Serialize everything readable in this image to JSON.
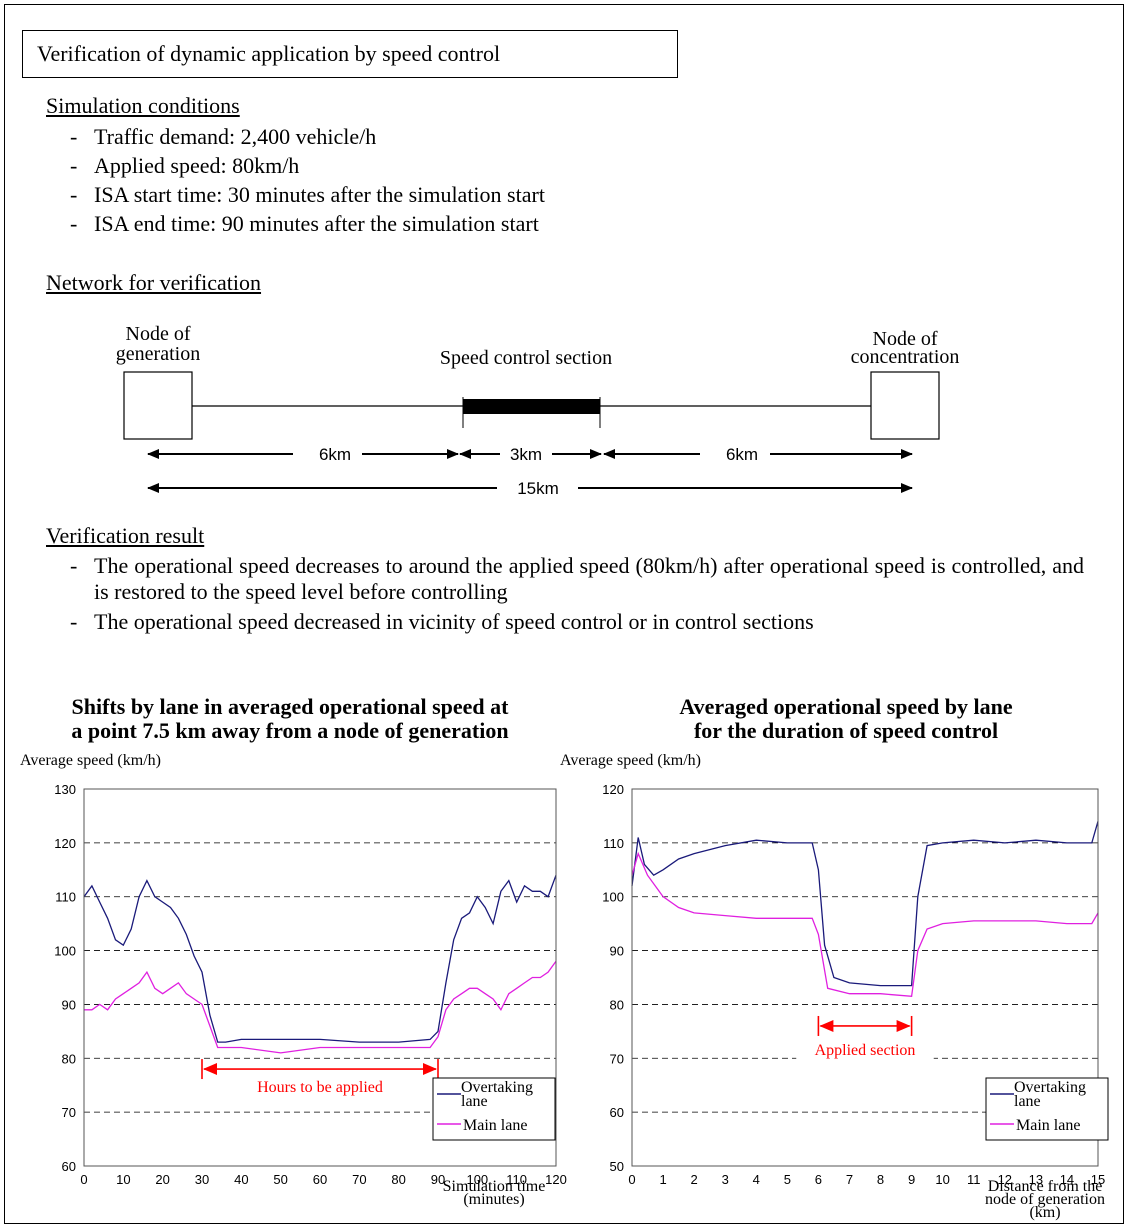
{
  "title": "Verification of dynamic application by speed control",
  "sim_conditions": {
    "heading": "Simulation conditions",
    "items": [
      "Traffic demand: 2,400 vehicle/h",
      "Applied speed: 80km/h",
      "ISA start time: 30 minutes after the simulation start",
      "ISA end time: 90 minutes after the simulation start"
    ]
  },
  "network": {
    "heading": "Network for verification",
    "node_gen": [
      "Node of",
      "generation"
    ],
    "node_con": [
      "Node of",
      "concentration"
    ],
    "section_label": "Speed control section",
    "seg1": "6km",
    "seg2": "3km",
    "seg3": "6km",
    "total": "15km"
  },
  "result": {
    "heading": "Verification result",
    "items": [
      "The operational speed decreases to around the applied speed (80km/h) after operational speed is controlled, and is restored to the speed level before controlling",
      "The operational speed decreased in vicinity of speed control or in control sections"
    ]
  },
  "colors": {
    "overtaking": "#1a1a7a",
    "main": "#e020e0",
    "annotation": "#ff0000"
  },
  "chart_data": [
    {
      "type": "line",
      "title": [
        "Shifts by lane in averaged operational speed at",
        "a point 7.5 km away from a node of generation"
      ],
      "ylabel": "Average speed (km/h)",
      "xlabel": [
        "Simulation time",
        "(minutes)"
      ],
      "ylim": [
        60,
        130
      ],
      "xlim": [
        0,
        120
      ],
      "yticks": [
        60,
        70,
        80,
        90,
        100,
        110,
        120,
        130
      ],
      "xticks": [
        0,
        10,
        20,
        30,
        40,
        50,
        60,
        70,
        80,
        90,
        100,
        110,
        120
      ],
      "grid": "horizontal dashed",
      "legend_position": "bottom-right",
      "annotation": {
        "text": "Hours to be applied",
        "from": 30,
        "to": 90,
        "y": 78
      },
      "series": [
        {
          "name": "Overtaking lane",
          "x": [
            0,
            2,
            4,
            6,
            8,
            10,
            12,
            14,
            16,
            18,
            20,
            22,
            24,
            26,
            28,
            30,
            32,
            34,
            36,
            40,
            50,
            60,
            70,
            80,
            88,
            90,
            92,
            94,
            96,
            98,
            100,
            102,
            104,
            106,
            108,
            110,
            112,
            114,
            116,
            118,
            120
          ],
          "values": [
            110,
            112,
            109,
            106,
            102,
            101,
            104,
            110,
            113,
            110,
            109,
            108,
            106,
            103,
            99,
            96,
            88,
            83,
            83,
            83.5,
            83.5,
            83.5,
            83,
            83,
            83.5,
            85,
            94,
            102,
            106,
            107,
            110,
            108,
            105,
            111,
            113,
            109,
            112,
            111,
            111,
            110,
            114
          ]
        },
        {
          "name": "Main lane",
          "x": [
            0,
            2,
            4,
            6,
            8,
            10,
            12,
            14,
            16,
            18,
            20,
            22,
            24,
            26,
            28,
            30,
            32,
            34,
            36,
            40,
            50,
            60,
            70,
            80,
            88,
            90,
            92,
            94,
            96,
            98,
            100,
            102,
            104,
            106,
            108,
            110,
            112,
            114,
            116,
            118,
            120
          ],
          "values": [
            89,
            89,
            90,
            89,
            91,
            92,
            93,
            94,
            96,
            93,
            92,
            93,
            94,
            92,
            91,
            90,
            86,
            82,
            82,
            82,
            81,
            82,
            82,
            82,
            82,
            84,
            89,
            91,
            92,
            93,
            93,
            92,
            91,
            89,
            92,
            93,
            94,
            95,
            95,
            96,
            98
          ]
        }
      ]
    },
    {
      "type": "line",
      "title": [
        "Averaged operational speed by lane",
        "for the duration of speed control"
      ],
      "ylabel": "Average speed (km/h)",
      "xlabel": [
        "Distance from the",
        "node of generation",
        "(km)"
      ],
      "ylim": [
        50,
        120
      ],
      "xlim": [
        0,
        15
      ],
      "yticks": [
        50,
        60,
        70,
        80,
        90,
        100,
        110,
        120
      ],
      "xticks": [
        0,
        1,
        2,
        3,
        4,
        5,
        6,
        7,
        8,
        9,
        10,
        11,
        12,
        13,
        14,
        15
      ],
      "grid": "horizontal dashed",
      "legend_position": "bottom-right",
      "annotation": {
        "text": "Applied section",
        "from": 6,
        "to": 9,
        "y": 76
      },
      "series": [
        {
          "name": "Overtaking lane",
          "x": [
            0,
            0.2,
            0.4,
            0.7,
            1,
            1.5,
            2,
            3,
            4,
            5,
            5.8,
            6,
            6.2,
            6.5,
            7,
            8,
            9,
            9.2,
            9.5,
            10,
            11,
            12,
            13,
            14,
            14.8,
            15
          ],
          "values": [
            102,
            111,
            106,
            104,
            105,
            107,
            108,
            109.5,
            110.5,
            110,
            110,
            105,
            91,
            85,
            84,
            83.5,
            83.5,
            100,
            109.5,
            110,
            110.5,
            110,
            110.5,
            110,
            110,
            114
          ]
        },
        {
          "name": "Main lane",
          "x": [
            0,
            0.2,
            0.5,
            1,
            1.5,
            2,
            3,
            4,
            5,
            5.8,
            6,
            6.3,
            7,
            8,
            9,
            9.2,
            9.5,
            10,
            11,
            12,
            13,
            14,
            14.8,
            15
          ],
          "values": [
            104,
            108,
            104,
            100,
            98,
            97,
            96.5,
            96,
            96,
            96,
            93,
            83,
            82,
            82,
            81.5,
            90,
            94,
            95,
            95.5,
            95.5,
            95.5,
            95,
            95,
            97
          ]
        }
      ]
    }
  ]
}
